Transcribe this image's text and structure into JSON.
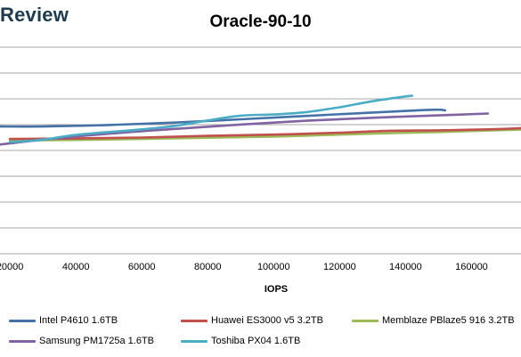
{
  "header": {
    "brand_text": "Review"
  },
  "chart_data": {
    "type": "line",
    "title": "Oracle-90-10",
    "xlabel": "IOPS",
    "ylabel": "",
    "xlim": [
      17000,
      175000
    ],
    "x_ticks": [
      20000,
      40000,
      60000,
      80000,
      100000,
      120000,
      140000,
      160000
    ],
    "y_gridlines": 9,
    "grid": true,
    "legend_position": "bottom",
    "series": [
      {
        "name": "Intel P4610 1.6TB",
        "color": "#4472a8",
        "points": [
          [
            17000,
            0.3
          ],
          [
            30000,
            0.3
          ],
          [
            50000,
            0.36
          ],
          [
            70000,
            0.46
          ],
          [
            90000,
            0.6
          ],
          [
            110000,
            0.74
          ],
          [
            130000,
            0.88
          ],
          [
            145000,
            0.98
          ],
          [
            150000,
            1.0
          ],
          [
            152000,
            0.97
          ]
        ]
      },
      {
        "name": "Huawei ES3000 v5 3.2TB",
        "color": "#c0504d",
        "points": [
          [
            20000,
            -0.22
          ],
          [
            40000,
            -0.2
          ],
          [
            60000,
            -0.16
          ],
          [
            80000,
            -0.09
          ],
          [
            100000,
            -0.04
          ],
          [
            120000,
            0.04
          ],
          [
            135000,
            0.12
          ],
          [
            150000,
            0.14
          ],
          [
            165000,
            0.18
          ],
          [
            175000,
            0.23
          ]
        ]
      },
      {
        "name": "Memblaze PBlaze5 916 3.2TB",
        "color": "#9bbb59",
        "points": [
          [
            20000,
            -0.28
          ],
          [
            40000,
            -0.26
          ],
          [
            60000,
            -0.22
          ],
          [
            80000,
            -0.17
          ],
          [
            100000,
            -0.12
          ],
          [
            120000,
            -0.04
          ],
          [
            135000,
            0.02
          ],
          [
            150000,
            0.07
          ],
          [
            165000,
            0.13
          ],
          [
            175000,
            0.17
          ]
        ]
      },
      {
        "name": "Samsung PM1725a 1.6TB",
        "color": "#8064a2",
        "points": [
          [
            17000,
            -0.45
          ],
          [
            30000,
            -0.25
          ],
          [
            50000,
            0.0
          ],
          [
            70000,
            0.2
          ],
          [
            90000,
            0.38
          ],
          [
            110000,
            0.54
          ],
          [
            130000,
            0.66
          ],
          [
            150000,
            0.76
          ],
          [
            165000,
            0.84
          ]
        ]
      },
      {
        "name": "Toshiba PX04 1.6TB",
        "color": "#4bacc6",
        "points": [
          [
            20000,
            -0.35
          ],
          [
            30000,
            -0.25
          ],
          [
            40000,
            -0.05
          ],
          [
            60000,
            0.18
          ],
          [
            70000,
            0.32
          ],
          [
            80000,
            0.55
          ],
          [
            90000,
            0.75
          ],
          [
            100000,
            0.8
          ],
          [
            110000,
            0.9
          ],
          [
            120000,
            1.1
          ],
          [
            130000,
            1.35
          ],
          [
            140000,
            1.55
          ],
          [
            142000,
            1.58
          ]
        ]
      }
    ]
  }
}
